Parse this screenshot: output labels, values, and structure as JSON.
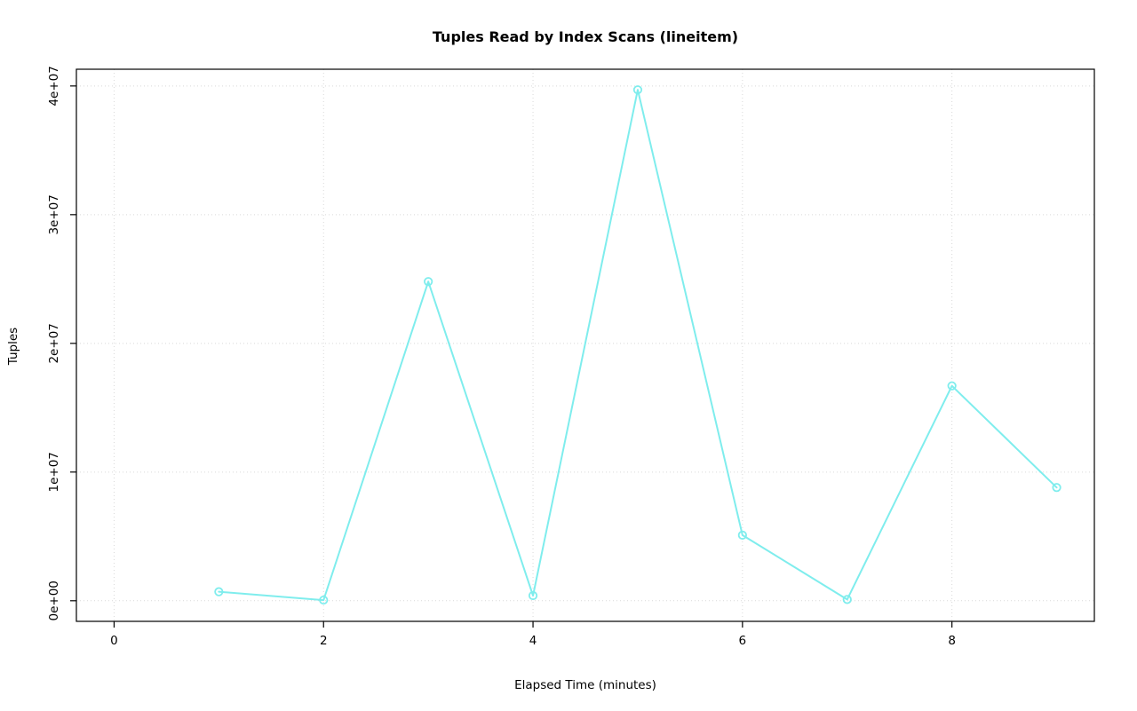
{
  "chart_data": {
    "type": "line",
    "title": "Tuples Read by Index Scans (lineitem)",
    "xlabel": "Elapsed Time (minutes)",
    "ylabel": "Tuples",
    "x": [
      1,
      2,
      3,
      4,
      5,
      6,
      7,
      8,
      9
    ],
    "y": [
      700000,
      50000,
      24800000,
      400000,
      39700000,
      5100000,
      100000,
      16700000,
      8800000
    ],
    "xlim": [
      -0.36,
      9.36
    ],
    "ylim": [
      -1600000,
      41300000
    ],
    "xticks": {
      "values": [
        0,
        2,
        4,
        6,
        8
      ],
      "labels": [
        "0",
        "2",
        "4",
        "6",
        "8"
      ]
    },
    "yticks": {
      "values": [
        0,
        10000000,
        20000000,
        30000000,
        40000000
      ],
      "labels": [
        "0e+00",
        "1e+07",
        "2e+07",
        "3e+07",
        "4e+07"
      ]
    },
    "grid": true,
    "legend": "none",
    "line_color": "#7FEDED",
    "point_color": "#7FEDED",
    "point_style": "open-circle",
    "grid_color": "#d9d9d9",
    "box_color": "#000000"
  }
}
